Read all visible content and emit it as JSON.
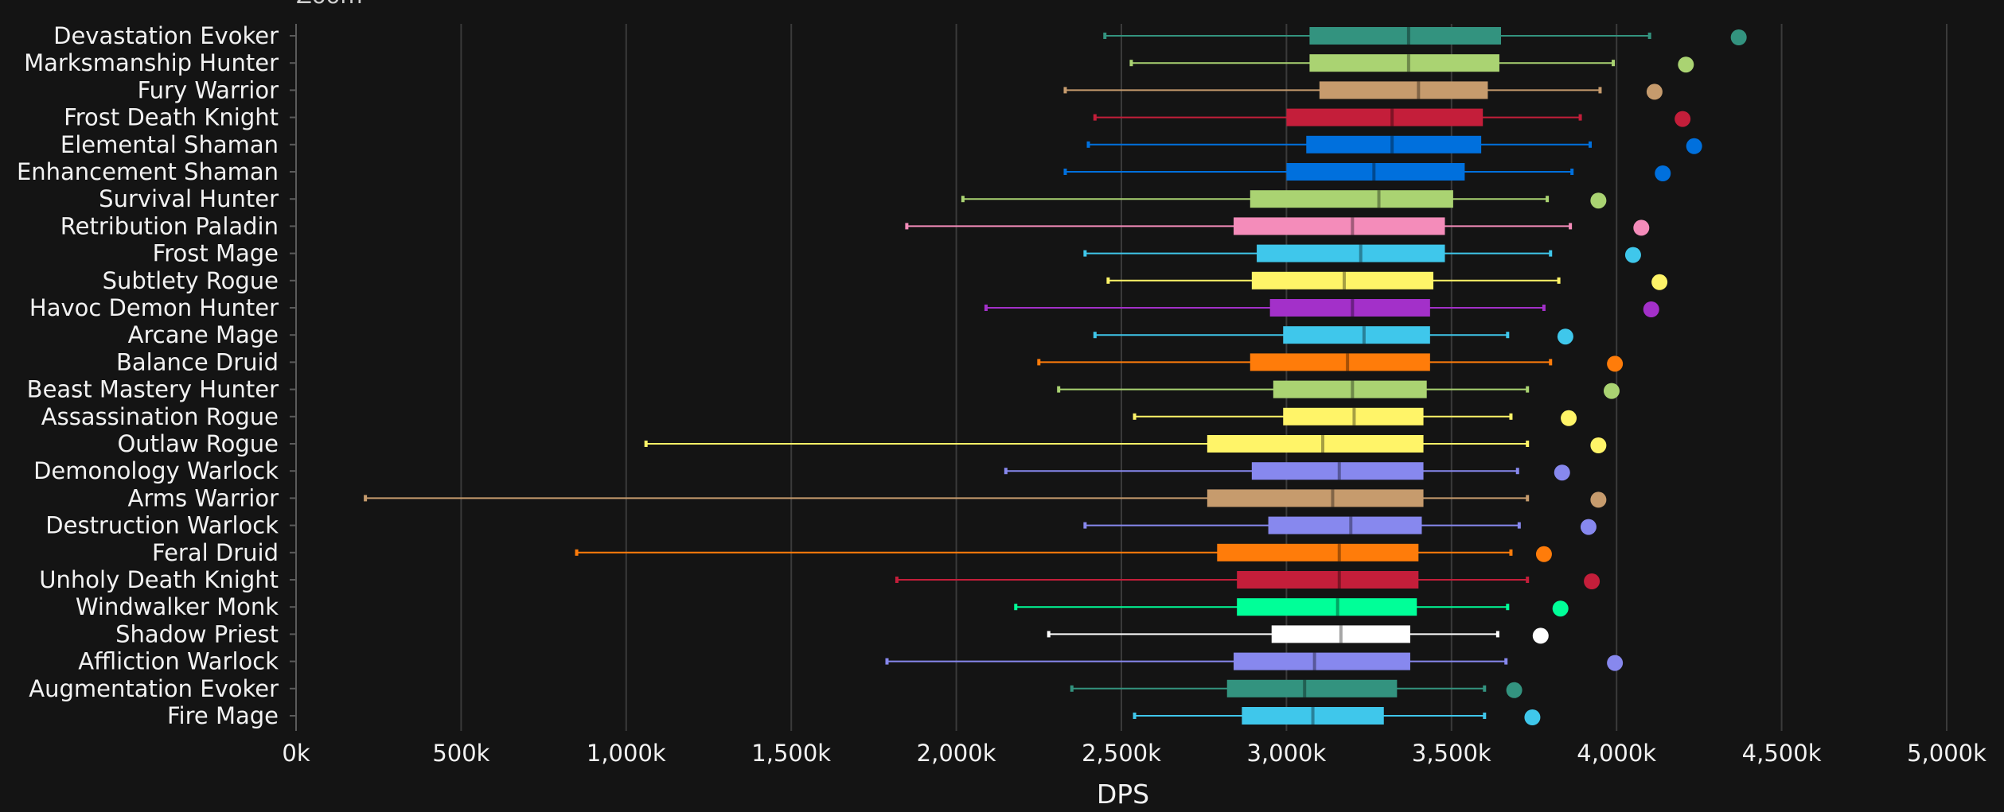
{
  "chart_data": {
    "type": "boxplot",
    "orientation": "horizontal",
    "title": "",
    "top_cropped_label": "Zoom",
    "xlabel": "DPS",
    "ylabel": "",
    "xlim": [
      0,
      5000000
    ],
    "x_tick_values": [
      0,
      500000,
      1000000,
      1500000,
      2000000,
      2500000,
      3000000,
      3500000,
      4000000,
      4500000,
      5000000
    ],
    "x_tick_labels": [
      "0k",
      "500k",
      "1,000k",
      "1,500k",
      "2,000k",
      "2,500k",
      "3,000k",
      "3,500k",
      "4,000k",
      "4,500k",
      "5,000k"
    ],
    "grid": true,
    "legend": "none",
    "background": "#141414",
    "series": [
      {
        "name": "Devastation Evoker",
        "color": "#33937F",
        "min": 2450000,
        "q1": 3070000,
        "median": 3370000,
        "q3": 3650000,
        "max": 4100000,
        "point": 4370000
      },
      {
        "name": "Marksmanship Hunter",
        "color": "#AAD372",
        "min": 2530000,
        "q1": 3070000,
        "median": 3370000,
        "q3": 3645000,
        "max": 3990000,
        "point": 4210000
      },
      {
        "name": "Fury Warrior",
        "color": "#C69B6D",
        "min": 2330000,
        "q1": 3100000,
        "median": 3400000,
        "q3": 3610000,
        "max": 3950000,
        "point": 4115000
      },
      {
        "name": "Frost Death Knight",
        "color": "#C41E3A",
        "min": 2420000,
        "q1": 3000000,
        "median": 3320000,
        "q3": 3595000,
        "max": 3890000,
        "point": 4200000
      },
      {
        "name": "Elemental Shaman",
        "color": "#0070DD",
        "min": 2400000,
        "q1": 3060000,
        "median": 3320000,
        "q3": 3590000,
        "max": 3920000,
        "point": 4235000
      },
      {
        "name": "Enhancement Shaman",
        "color": "#0070DD",
        "min": 2330000,
        "q1": 3000000,
        "median": 3265000,
        "q3": 3540000,
        "max": 3865000,
        "point": 4140000
      },
      {
        "name": "Survival Hunter",
        "color": "#AAD372",
        "min": 2020000,
        "q1": 2890000,
        "median": 3280000,
        "q3": 3505000,
        "max": 3790000,
        "point": 3945000
      },
      {
        "name": "Retribution Paladin",
        "color": "#F48CBA",
        "min": 1850000,
        "q1": 2840000,
        "median": 3200000,
        "q3": 3480000,
        "max": 3860000,
        "point": 4075000
      },
      {
        "name": "Frost Mage",
        "color": "#3FC7EB",
        "min": 2390000,
        "q1": 2910000,
        "median": 3225000,
        "q3": 3480000,
        "max": 3800000,
        "point": 4050000
      },
      {
        "name": "Subtlety Rogue",
        "color": "#FFF468",
        "min": 2460000,
        "q1": 2895000,
        "median": 3175000,
        "q3": 3445000,
        "max": 3825000,
        "point": 4130000
      },
      {
        "name": "Havoc Demon Hunter",
        "color": "#A330C9",
        "min": 2090000,
        "q1": 2950000,
        "median": 3200000,
        "q3": 3435000,
        "max": 3780000,
        "point": 4105000
      },
      {
        "name": "Arcane Mage",
        "color": "#3FC7EB",
        "min": 2420000,
        "q1": 2990000,
        "median": 3235000,
        "q3": 3435000,
        "max": 3670000,
        "point": 3845000
      },
      {
        "name": "Balance Druid",
        "color": "#FF7C0A",
        "min": 2250000,
        "q1": 2890000,
        "median": 3185000,
        "q3": 3435000,
        "max": 3800000,
        "point": 3995000
      },
      {
        "name": "Beast Mastery Hunter",
        "color": "#AAD372",
        "min": 2310000,
        "q1": 2960000,
        "median": 3200000,
        "q3": 3425000,
        "max": 3730000,
        "point": 3985000
      },
      {
        "name": "Assassination Rogue",
        "color": "#FFF468",
        "min": 2540000,
        "q1": 2990000,
        "median": 3205000,
        "q3": 3415000,
        "max": 3680000,
        "point": 3855000
      },
      {
        "name": "Outlaw Rogue",
        "color": "#FFF468",
        "min": 1060000,
        "q1": 2760000,
        "median": 3110000,
        "q3": 3415000,
        "max": 3730000,
        "point": 3945000
      },
      {
        "name": "Demonology Warlock",
        "color": "#8788EE",
        "min": 2150000,
        "q1": 2895000,
        "median": 3160000,
        "q3": 3415000,
        "max": 3700000,
        "point": 3835000
      },
      {
        "name": "Arms Warrior",
        "color": "#C69B6D",
        "min": 210000,
        "q1": 2760000,
        "median": 3140000,
        "q3": 3415000,
        "max": 3730000,
        "point": 3945000
      },
      {
        "name": "Destruction Warlock",
        "color": "#8788EE",
        "min": 2390000,
        "q1": 2945000,
        "median": 3195000,
        "q3": 3410000,
        "max": 3705000,
        "point": 3915000
      },
      {
        "name": "Feral Druid",
        "color": "#FF7C0A",
        "min": 850000,
        "q1": 2790000,
        "median": 3160000,
        "q3": 3400000,
        "max": 3680000,
        "point": 3780000
      },
      {
        "name": "Unholy Death Knight",
        "color": "#C41E3A",
        "min": 1820000,
        "q1": 2850000,
        "median": 3160000,
        "q3": 3400000,
        "max": 3730000,
        "point": 3925000
      },
      {
        "name": "Windwalker Monk",
        "color": "#00FF98",
        "min": 2180000,
        "q1": 2850000,
        "median": 3155000,
        "q3": 3395000,
        "max": 3670000,
        "point": 3830000
      },
      {
        "name": "Shadow Priest",
        "color": "#FFFFFF",
        "min": 2280000,
        "q1": 2955000,
        "median": 3165000,
        "q3": 3375000,
        "max": 3640000,
        "point": 3770000
      },
      {
        "name": "Affliction Warlock",
        "color": "#8788EE",
        "min": 1790000,
        "q1": 2840000,
        "median": 3085000,
        "q3": 3375000,
        "max": 3665000,
        "point": 3995000
      },
      {
        "name": "Augmentation Evoker",
        "color": "#33937F",
        "min": 2350000,
        "q1": 2820000,
        "median": 3055000,
        "q3": 3335000,
        "max": 3600000,
        "point": 3690000
      },
      {
        "name": "Fire Mage",
        "color": "#3FC7EB",
        "min": 2540000,
        "q1": 2865000,
        "median": 3080000,
        "q3": 3295000,
        "max": 3600000,
        "point": 3745000
      }
    ]
  }
}
